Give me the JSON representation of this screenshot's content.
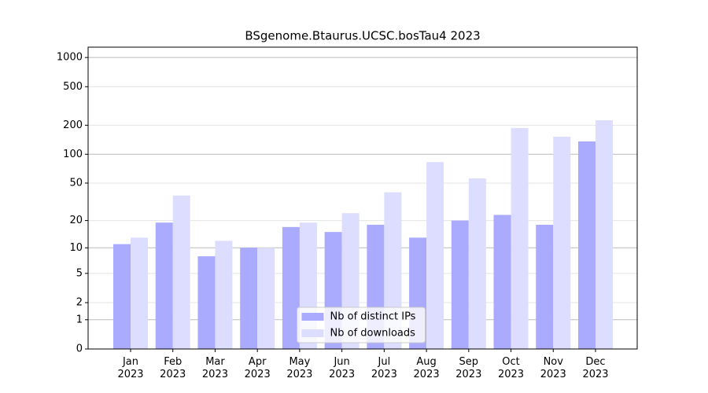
{
  "chart_data": {
    "type": "bar",
    "title": "BSgenome.Btaurus.UCSC.bosTau4 2023",
    "categories": [
      "Jan\n2023",
      "Feb\n2023",
      "Mar\n2023",
      "Apr\n2023",
      "May\n2023",
      "Jun\n2023",
      "Jul\n2023",
      "Aug\n2023",
      "Sep\n2023",
      "Oct\n2023",
      "Nov\n2023",
      "Dec\n2023"
    ],
    "series": [
      {
        "name": "Nb of distinct IPs",
        "color": "#aaaaff",
        "values": [
          11,
          19,
          8,
          10,
          17,
          15,
          18,
          13,
          20,
          23,
          18,
          136
        ]
      },
      {
        "name": "Nb of downloads",
        "color": "#ddddff",
        "values": [
          13,
          37,
          12,
          10,
          19,
          24,
          40,
          83,
          56,
          187,
          152,
          225
        ]
      }
    ],
    "y_scale": "log1p",
    "ylim": [
      0,
      1278
    ],
    "yticks": [
      0,
      1,
      2,
      5,
      10,
      20,
      50,
      100,
      200,
      500,
      1000
    ],
    "grid": true,
    "legend_position": "lower center"
  }
}
